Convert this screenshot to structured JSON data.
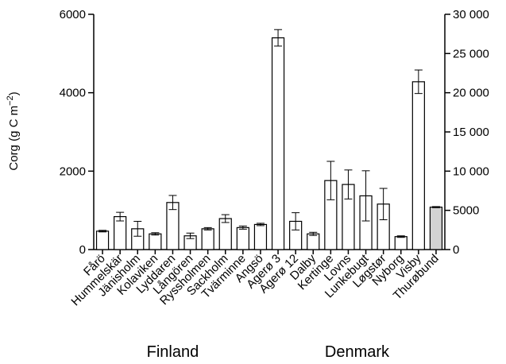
{
  "chart_data": {
    "type": "bar",
    "xlabel": "",
    "ylabel": "Corg (g C m",
    "ylabel_superscript": "−2",
    "ylabel_suffix": ")",
    "ylim": [
      0,
      6000
    ],
    "y_ticks": [
      0,
      2000,
      4000,
      6000
    ],
    "y_tick_labels": [
      "0",
      "2000",
      "4000",
      "6000"
    ],
    "y2lim": [
      0,
      30000
    ],
    "y2_ticks": [
      0,
      5000,
      10000,
      15000,
      20000,
      25000,
      30000
    ],
    "y2_tick_labels": [
      "0",
      "5000",
      "10 000",
      "15 000",
      "20 000",
      "25 000",
      "30 000"
    ],
    "groups": [
      {
        "label": "Finland",
        "from": 0,
        "to": 8
      },
      {
        "label": "Denmark",
        "from": 9,
        "to": 20
      }
    ],
    "categories": [
      "Fårö",
      "Hummelskär",
      "Jänisholm",
      "Kolaviken",
      "Lyddaren",
      "Långören",
      "Ryssholmen",
      "Sackholm",
      "Tvärminne",
      "Angsö",
      "Agerø 3",
      "Agerø 12",
      "Dalby",
      "Kertinge",
      "Lovns",
      "Lunkebugt",
      "Løgstør",
      "Nyborg",
      "Visby",
      "Thurøbund"
    ],
    "series": [
      {
        "values": [
          470,
          840,
          530,
          400,
          1200,
          350,
          530,
          790,
          560,
          640,
          5400,
          720,
          400,
          1760,
          1660,
          1370,
          1160,
          330,
          4280,
          5410
        ],
        "errors": [
          20,
          110,
          190,
          30,
          180,
          70,
          30,
          100,
          40,
          30,
          210,
          220,
          40,
          490,
          370,
          640,
          400,
          20,
          300,
          70
        ],
        "axis": [
          "left",
          "left",
          "left",
          "left",
          "left",
          "left",
          "left",
          "left",
          "left",
          "left",
          "left",
          "left",
          "left",
          "left",
          "left",
          "left",
          "left",
          "left",
          "left",
          "right"
        ],
        "fill": [
          "#ffffff",
          "#ffffff",
          "#ffffff",
          "#ffffff",
          "#ffffff",
          "#ffffff",
          "#ffffff",
          "#ffffff",
          "#ffffff",
          "#ffffff",
          "#ffffff",
          "#ffffff",
          "#ffffff",
          "#ffffff",
          "#ffffff",
          "#ffffff",
          "#ffffff",
          "#ffffff",
          "#ffffff",
          "#d3d3d3"
        ]
      }
    ],
    "grid": false,
    "stroke_color": "#000000"
  }
}
